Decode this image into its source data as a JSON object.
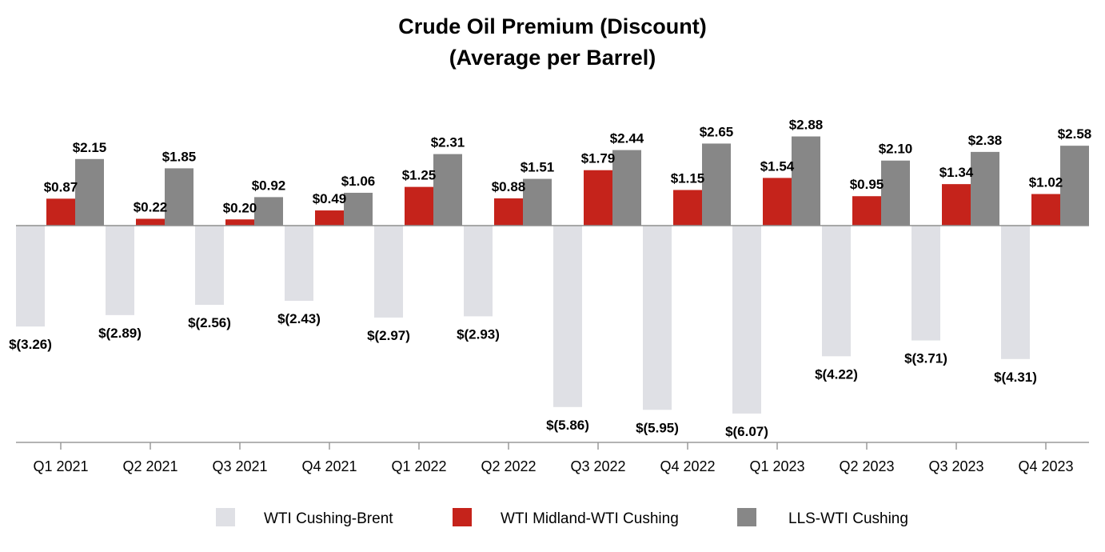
{
  "chart_data": {
    "type": "bar",
    "title": "Crude Oil Premium (Discount)",
    "subtitle": "(Average per Barrel)",
    "xlabel": "",
    "ylabel": "",
    "ylim": [
      -6.5,
      3.5
    ],
    "grid": false,
    "legend_position": "bottom",
    "categories": [
      "Q1 2021",
      "Q2 2021",
      "Q3 2021",
      "Q4 2021",
      "Q1 2022",
      "Q2 2022",
      "Q3 2022",
      "Q4 2022",
      "Q1 2023",
      "Q2 2023",
      "Q3 2023",
      "Q4 2023"
    ],
    "series": [
      {
        "name": "WTI Cushing-Brent",
        "color": "#dfe0e5",
        "values": [
          -3.26,
          -2.89,
          -2.56,
          -2.43,
          -2.97,
          -2.93,
          -5.86,
          -5.95,
          -6.07,
          -4.22,
          -3.71,
          -4.31
        ],
        "labels": [
          "$(3.26)",
          "$(2.89)",
          "$(2.56)",
          "$(2.43)",
          "$(2.97)",
          "$(2.93)",
          "$(5.86)",
          "$(5.95)",
          "$(6.07)",
          "$(4.22)",
          "$(3.71)",
          "$(4.31)"
        ]
      },
      {
        "name": "WTI Midland-WTI Cushing",
        "color": "#c5231b",
        "values": [
          0.87,
          0.22,
          0.2,
          0.49,
          1.25,
          0.88,
          1.79,
          1.15,
          1.54,
          0.95,
          1.34,
          1.02
        ],
        "labels": [
          "$0.87",
          "$0.22",
          "$0.20",
          "$0.49",
          "$1.25",
          "$0.88",
          "$1.79",
          "$1.15",
          "$1.54",
          "$0.95",
          "$1.34",
          "$1.02"
        ]
      },
      {
        "name": "LLS-WTI Cushing",
        "color": "#878787",
        "values": [
          2.15,
          1.85,
          0.92,
          1.06,
          2.31,
          1.51,
          2.44,
          2.65,
          2.88,
          2.1,
          2.38,
          2.58
        ],
        "labels": [
          "$2.15",
          "$1.85",
          "$0.92",
          "$1.06",
          "$2.31",
          "$1.51",
          "$2.44",
          "$2.65",
          "$2.88",
          "$2.10",
          "$2.38",
          "$2.58"
        ]
      }
    ]
  }
}
